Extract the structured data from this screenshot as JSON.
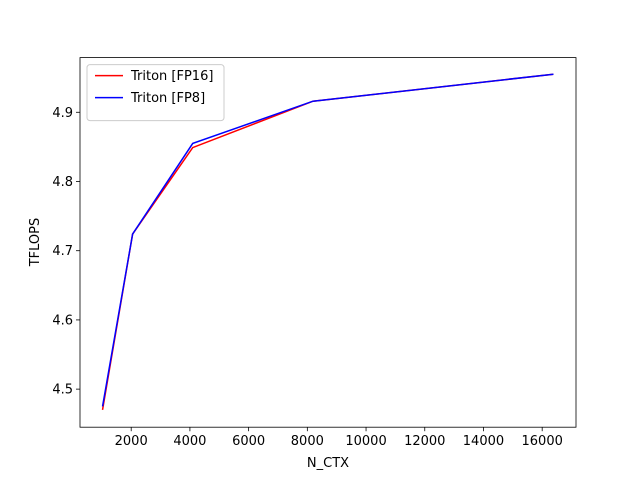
{
  "chart_data": {
    "type": "line",
    "x": [
      1024,
      2048,
      4096,
      8192,
      16384
    ],
    "series": [
      {
        "name": "Triton [FP16]",
        "color": "#ff0000",
        "values": [
          4.47,
          4.724,
          4.849,
          4.916,
          4.955
        ]
      },
      {
        "name": "Triton [FP8]",
        "color": "#0000ff",
        "values": [
          4.475,
          4.724,
          4.855,
          4.916,
          4.955
        ]
      }
    ],
    "xlabel": "N_CTX",
    "ylabel": "TFLOPS",
    "xlim": [
      256,
      17152
    ],
    "ylim": [
      4.445,
      4.979
    ],
    "xticks": [
      2000,
      4000,
      6000,
      8000,
      10000,
      12000,
      14000,
      16000
    ],
    "yticks": [
      4.5,
      4.6,
      4.7,
      4.8,
      4.9
    ],
    "grid": false,
    "legend": "upper left"
  }
}
